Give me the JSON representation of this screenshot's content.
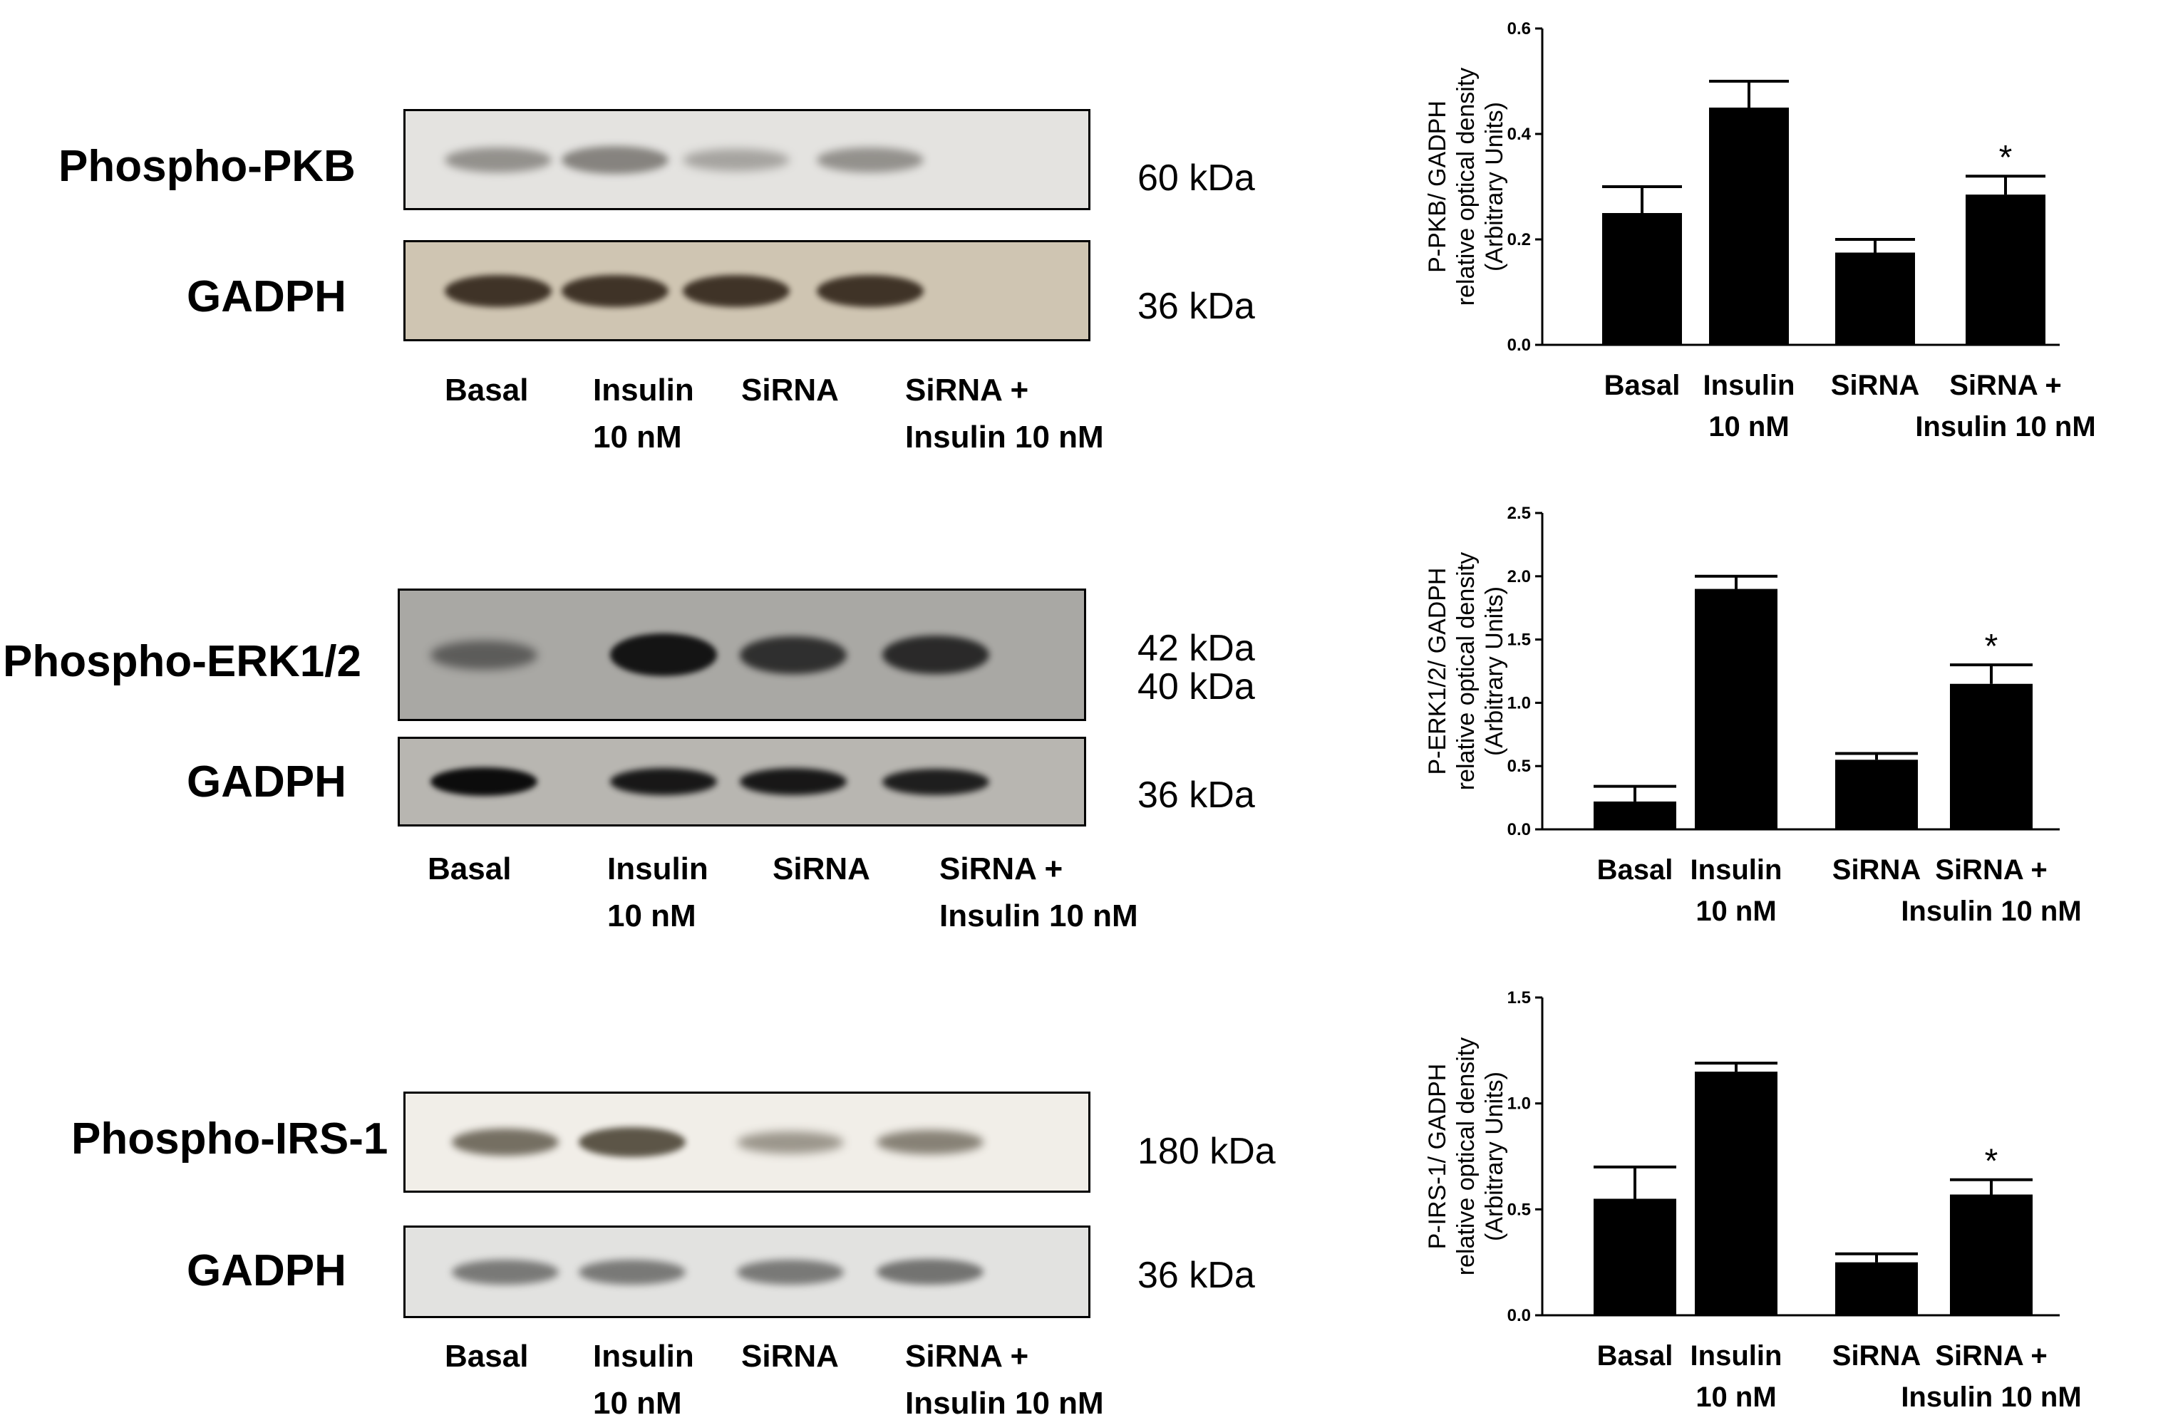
{
  "blots": [
    {
      "primary": {
        "protein": "Phospho-PKB",
        "kda": "60 kDa",
        "bg": "#e4e3e0",
        "band_color": "#6a6762",
        "intensities": [
          0.55,
          0.7,
          0.35,
          0.55
        ]
      },
      "control": {
        "protein": "GADPH",
        "kda": "36 kDa",
        "bg": "#cfc5b2",
        "band_color": "#3a2e22",
        "intensities": [
          0.95,
          0.95,
          0.95,
          0.95
        ]
      },
      "lanes": [
        {
          "line1": "Basal",
          "line2": ""
        },
        {
          "line1": "Insulin",
          "line2": "10 nM"
        },
        {
          "line1": "SiRNA",
          "line2": ""
        },
        {
          "line1": "SiRNA +",
          "line2": "Insulin 10 nM"
        }
      ]
    },
    {
      "primary": {
        "protein": "Phospho-ERK1/2",
        "kda_top": "42 kDa",
        "kda_bottom": "40 kDa",
        "bg": "#a9a8a4",
        "band_color": "#141414",
        "intensities": [
          0.35,
          1.0,
          0.75,
          0.8
        ]
      },
      "control": {
        "protein": "GADPH",
        "kda": "36 kDa",
        "bg": "#b8b6b1",
        "band_color": "#0c0c0c",
        "intensities": [
          1.0,
          0.9,
          0.9,
          0.85
        ]
      },
      "lanes": [
        {
          "line1": "Basal",
          "line2": ""
        },
        {
          "line1": "Insulin",
          "line2": "10 nM"
        },
        {
          "line1": "SiRNA",
          "line2": ""
        },
        {
          "line1": "SiRNA +",
          "line2": "Insulin 10 nM"
        }
      ]
    },
    {
      "primary": {
        "protein": "Phospho-IRS-1",
        "kda": "180 kDa",
        "bg": "#f1eee8",
        "band_color": "#4a4334",
        "intensities": [
          0.65,
          0.85,
          0.35,
          0.5
        ]
      },
      "control": {
        "protein": "GADPH",
        "kda": "36 kDa",
        "bg": "#e2e2e0",
        "band_color": "#5a5a58",
        "intensities": [
          0.7,
          0.7,
          0.7,
          0.75
        ]
      },
      "lanes": [
        {
          "line1": "Basal",
          "line2": ""
        },
        {
          "line1": "Insulin",
          "line2": "10 nM"
        },
        {
          "line1": "SiRNA",
          "line2": ""
        },
        {
          "line1": "SiRNA +",
          "line2": "Insulin 10 nM"
        }
      ]
    }
  ],
  "chart_data": [
    {
      "type": "bar",
      "ylabel_lines": [
        "P-PKB/ GADPH",
        "relative optical density",
        "(Arbitrary Units)"
      ],
      "ylim": [
        0,
        0.6
      ],
      "yticks": [
        "0.0",
        "0.2",
        "0.4",
        "0.6"
      ],
      "categories": [
        {
          "line1": "Basal",
          "line2": ""
        },
        {
          "line1": "Insulin",
          "line2": "10 nM"
        },
        {
          "line1": "SiRNA",
          "line2": ""
        },
        {
          "line1": "SiRNA +",
          "line2": "Insulin 10 nM"
        }
      ],
      "values": [
        0.25,
        0.45,
        0.175,
        0.285
      ],
      "errors": [
        0.05,
        0.05,
        0.025,
        0.035
      ],
      "annotations": [
        "",
        "",
        "",
        "*"
      ],
      "bar_color": "#000000"
    },
    {
      "type": "bar",
      "ylabel_lines": [
        "P-ERK1/2/ GADPH",
        "relative optical density",
        "(Arbitrary Units)"
      ],
      "ylim": [
        0,
        2.5
      ],
      "yticks": [
        "0.0",
        "0.5",
        "1.0",
        "1.5",
        "2.0",
        "2.5"
      ],
      "categories": [
        {
          "line1": "Basal",
          "line2": ""
        },
        {
          "line1": "Insulin",
          "line2": "10 nM"
        },
        {
          "line1": "SiRNA",
          "line2": ""
        },
        {
          "line1": "SiRNA +",
          "line2": "Insulin 10 nM"
        }
      ],
      "values": [
        0.22,
        1.9,
        0.55,
        1.15
      ],
      "errors": [
        0.12,
        0.1,
        0.05,
        0.15
      ],
      "annotations": [
        "",
        "",
        "",
        "*"
      ],
      "bar_color": "#000000"
    },
    {
      "type": "bar",
      "ylabel_lines": [
        "P-IRS-1/ GADPH",
        "relative optical density",
        "(Arbitrary Units)"
      ],
      "ylim": [
        0,
        1.5
      ],
      "yticks": [
        "0.0",
        "0.5",
        "1.0",
        "1.5"
      ],
      "categories": [
        {
          "line1": "Basal",
          "line2": ""
        },
        {
          "line1": "Insulin",
          "line2": "10 nM"
        },
        {
          "line1": "SiRNA",
          "line2": ""
        },
        {
          "line1": "SiRNA +",
          "line2": "Insulin 10 nM"
        }
      ],
      "values": [
        0.55,
        1.15,
        0.25,
        0.57
      ],
      "errors": [
        0.15,
        0.04,
        0.04,
        0.07
      ],
      "annotations": [
        "",
        "",
        "",
        "*"
      ],
      "bar_color": "#000000"
    }
  ]
}
